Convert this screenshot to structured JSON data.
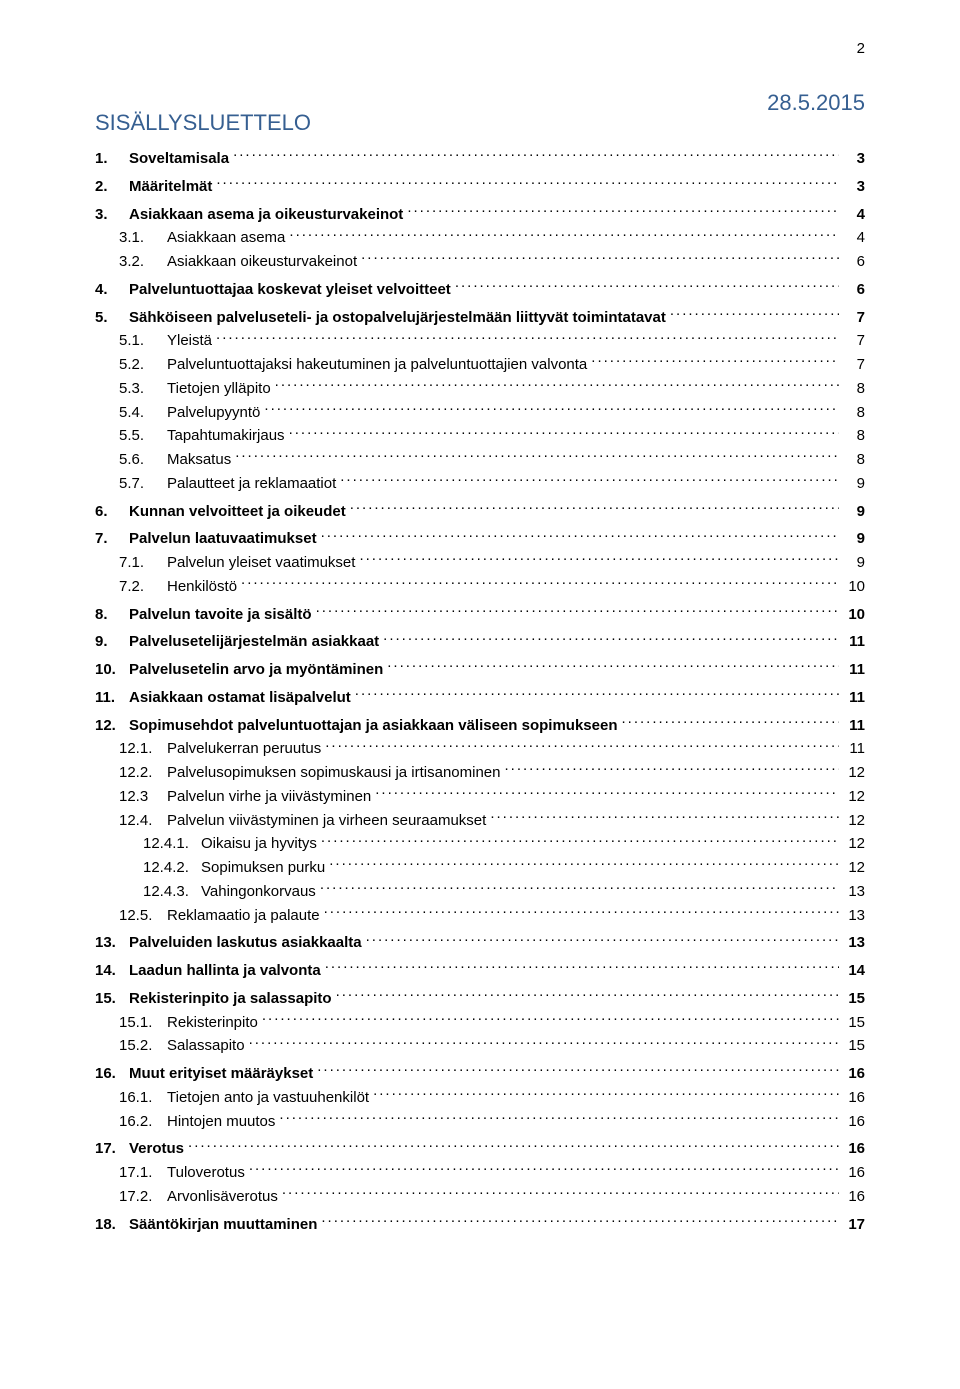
{
  "pageNumber": "2",
  "date": "28.5.2015",
  "title": "SISÄLLYSLUETTELO",
  "colors": {
    "heading": "#365f91",
    "text": "#000000",
    "background": "#ffffff"
  },
  "toc": [
    {
      "level": 1,
      "num": "1.",
      "label": "Soveltamisala",
      "page": "3"
    },
    {
      "level": 1,
      "num": "2.",
      "label": "Määritelmät",
      "page": "3"
    },
    {
      "level": 1,
      "num": "3.",
      "label": "Asiakkaan asema ja oikeusturvakeinot",
      "page": "4"
    },
    {
      "level": 2,
      "num": "3.1.",
      "label": "Asiakkaan asema",
      "page": "4"
    },
    {
      "level": 2,
      "num": "3.2.",
      "label": "Asiakkaan oikeusturvakeinot",
      "page": "6"
    },
    {
      "level": 1,
      "num": "4.",
      "label": "Palveluntuottajaa koskevat yleiset velvoitteet",
      "page": "6"
    },
    {
      "level": 1,
      "num": "5.",
      "label": "Sähköiseen palveluseteli- ja ostopalvelujärjestelmään liittyvät toimintatavat",
      "page": "7"
    },
    {
      "level": 2,
      "num": "5.1.",
      "label": "Yleistä",
      "page": "7"
    },
    {
      "level": 2,
      "num": "5.2.",
      "label": "Palveluntuottajaksi hakeutuminen ja palveluntuottajien valvonta",
      "page": "7"
    },
    {
      "level": 2,
      "num": "5.3.",
      "label": "Tietojen ylläpito",
      "page": "8"
    },
    {
      "level": 2,
      "num": "5.4.",
      "label": "Palvelupyyntö",
      "page": "8"
    },
    {
      "level": 2,
      "num": "5.5.",
      "label": "Tapahtumakirjaus",
      "page": "8"
    },
    {
      "level": 2,
      "num": "5.6.",
      "label": "Maksatus",
      "page": "8"
    },
    {
      "level": 2,
      "num": "5.7.",
      "label": "Palautteet ja reklamaatiot",
      "page": "9"
    },
    {
      "level": 1,
      "num": "6.",
      "label": "Kunnan velvoitteet ja oikeudet",
      "page": "9"
    },
    {
      "level": 1,
      "num": "7.",
      "label": "Palvelun laatuvaatimukset",
      "page": "9"
    },
    {
      "level": 2,
      "num": "7.1.",
      "label": "Palvelun yleiset vaatimukset",
      "page": "9"
    },
    {
      "level": 2,
      "num": "7.2.",
      "label": "Henkilöstö",
      "page": "10"
    },
    {
      "level": 1,
      "num": "8.",
      "label": "Palvelun tavoite ja sisältö",
      "page": "10"
    },
    {
      "level": 1,
      "num": "9.",
      "label": "Palvelusetelijärjestelmän asiakkaat",
      "page": "11"
    },
    {
      "level": 1,
      "num": "10.",
      "label": "Palvelusetelin arvo ja myöntäminen",
      "page": "11"
    },
    {
      "level": 1,
      "num": "11.",
      "label": "Asiakkaan ostamat lisäpalvelut",
      "page": "11"
    },
    {
      "level": 1,
      "num": "12.",
      "label": "Sopimusehdot palveluntuottajan ja asiakkaan väliseen sopimukseen",
      "page": "11"
    },
    {
      "level": 2,
      "num": "12.1.",
      "label": "Palvelukerran peruutus",
      "page": "11"
    },
    {
      "level": 2,
      "num": "12.2.",
      "label": "Palvelusopimuksen sopimuskausi ja irtisanominen",
      "page": "12"
    },
    {
      "level": 2,
      "num": "12.3",
      "label": "Palvelun virhe ja viivästyminen",
      "page": "12"
    },
    {
      "level": 2,
      "num": "12.4.",
      "label": "Palvelun viivästyminen ja virheen seuraamukset",
      "page": "12"
    },
    {
      "level": 3,
      "num": "12.4.1.",
      "label": "Oikaisu ja hyvitys",
      "page": "12"
    },
    {
      "level": 3,
      "num": "12.4.2.",
      "label": "Sopimuksen purku",
      "page": "12"
    },
    {
      "level": 3,
      "num": "12.4.3.",
      "label": "Vahingonkorvaus",
      "page": "13"
    },
    {
      "level": 2,
      "num": "12.5.",
      "label": "Reklamaatio ja palaute",
      "page": "13"
    },
    {
      "level": 1,
      "num": "13.",
      "label": "Palveluiden laskutus asiakkaalta",
      "page": "13"
    },
    {
      "level": 1,
      "num": "14.",
      "label": "Laadun hallinta ja valvonta",
      "page": "14"
    },
    {
      "level": 1,
      "num": "15.",
      "label": "Rekisterinpito ja salassapito",
      "page": "15"
    },
    {
      "level": 2,
      "num": "15.1.",
      "label": "Rekisterinpito",
      "page": "15"
    },
    {
      "level": 2,
      "num": "15.2.",
      "label": "Salassapito",
      "page": "15"
    },
    {
      "level": 1,
      "num": "16.",
      "label": "Muut erityiset määräykset",
      "page": "16"
    },
    {
      "level": 2,
      "num": "16.1.",
      "label": "Tietojen anto ja vastuuhenkilöt",
      "page": "16"
    },
    {
      "level": 2,
      "num": "16.2.",
      "label": "Hintojen muutos",
      "page": "16"
    },
    {
      "level": 1,
      "num": "17.",
      "label": "Verotus",
      "page": "16"
    },
    {
      "level": 2,
      "num": "17.1.",
      "label": "Tuloverotus",
      "page": "16"
    },
    {
      "level": 2,
      "num": "17.2.",
      "label": "Arvonlisäverotus",
      "page": "16"
    },
    {
      "level": 1,
      "num": "18.",
      "label": "Sääntökirjan muuttaminen",
      "page": "17"
    }
  ]
}
